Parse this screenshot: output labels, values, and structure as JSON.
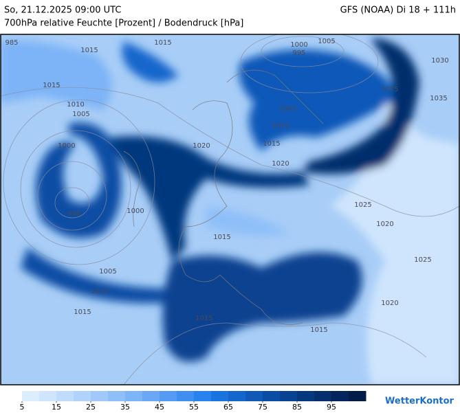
{
  "header": {
    "datetime": "So, 21.12.2025 09:00 UTC",
    "model": "GFS (NOAA) Di 18 + 111h",
    "subtitle": "700hPa relative Feuchte [Prozent] / Bodendruck [hPa]"
  },
  "isobar_labels": [
    "985",
    "1015",
    "1015",
    "1000",
    "995",
    "1005",
    "1030",
    "1015",
    "1010",
    "1005",
    "1015",
    "1035",
    "1000",
    "1005",
    "1010",
    "1015",
    "1020",
    "1020",
    "990",
    "1000",
    "1025",
    "1020",
    "1015",
    "1025",
    "1005",
    "1010",
    "1015",
    "1015",
    "1015",
    "1020"
  ],
  "colorbar": {
    "range": [
      5,
      105
    ],
    "ticks": [
      5,
      15,
      25,
      35,
      45,
      55,
      65,
      75,
      85,
      95
    ],
    "colors": [
      "#dceefe",
      "#cfe5fd",
      "#bfdcfc",
      "#b0d3fb",
      "#a0c9fa",
      "#8fbff8",
      "#7db4f7",
      "#6aa8f5",
      "#559bf3",
      "#3f8ef1",
      "#2a82ef",
      "#1a74e0",
      "#1566cc",
      "#1059b8",
      "#0c4da4",
      "#084290",
      "#06387e",
      "#042e6c",
      "#03255b",
      "#021c4a"
    ]
  },
  "logo": "WetterKontor"
}
